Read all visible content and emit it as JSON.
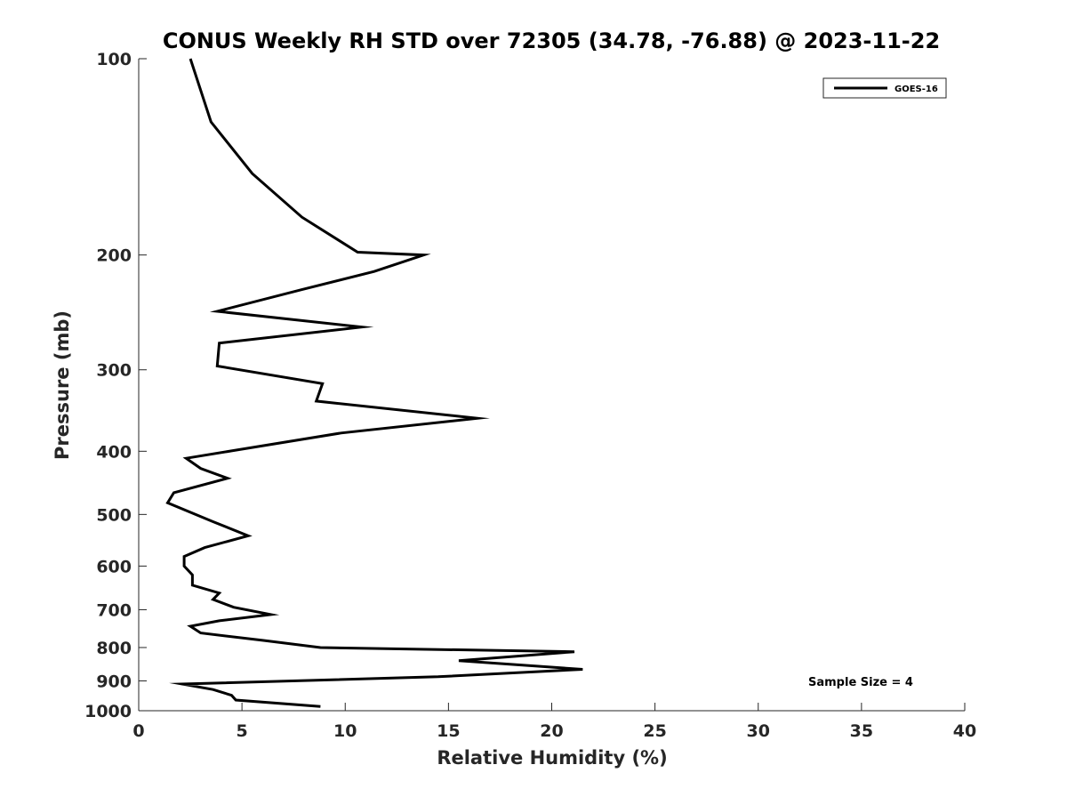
{
  "chart_data": {
    "type": "line",
    "title": "CONUS Weekly RH STD over 72305 (34.78, -76.88) @ 2023-11-22",
    "xlabel": "Relative Humidity (%)",
    "ylabel": "Pressure (mb)",
    "xlim": [
      0,
      40
    ],
    "ylim": [
      100,
      1000
    ],
    "y_scale": "log",
    "y_reversed": true,
    "x_ticks": [
      "0",
      "5",
      "10",
      "15",
      "20",
      "25",
      "30",
      "35",
      "40"
    ],
    "y_ticks": [
      "100",
      "200",
      "300",
      "400",
      "500",
      "600",
      "700",
      "800",
      "900",
      "1000"
    ],
    "grid": false,
    "legend_position": "top-right",
    "annotation": "Sample Size = 4",
    "series": [
      {
        "name": "GOES-16",
        "color": "#000000",
        "points": [
          [
            2.5,
            100
          ],
          [
            3.5,
            125
          ],
          [
            5.5,
            150
          ],
          [
            7.9,
            175
          ],
          [
            10.6,
            198
          ],
          [
            13.8,
            200
          ],
          [
            11.4,
            212
          ],
          [
            7.9,
            226
          ],
          [
            3.8,
            244
          ],
          [
            10.8,
            258
          ],
          [
            3.9,
            273
          ],
          [
            3.8,
            296
          ],
          [
            8.9,
            315
          ],
          [
            8.6,
            335
          ],
          [
            16.4,
            356
          ],
          [
            9.8,
            375
          ],
          [
            2.3,
            410
          ],
          [
            3.0,
            425
          ],
          [
            4.3,
            440
          ],
          [
            1.7,
            463
          ],
          [
            1.4,
            480
          ],
          [
            3.6,
            513
          ],
          [
            5.3,
            539
          ],
          [
            3.2,
            562
          ],
          [
            2.2,
            580
          ],
          [
            2.2,
            600
          ],
          [
            2.6,
            619
          ],
          [
            2.6,
            642
          ],
          [
            3.9,
            660
          ],
          [
            3.6,
            675
          ],
          [
            4.6,
            694
          ],
          [
            6.4,
            712
          ],
          [
            3.9,
            728
          ],
          [
            2.5,
            742
          ],
          [
            3.0,
            760
          ],
          [
            6.0,
            780
          ],
          [
            8.8,
            800
          ],
          [
            21.1,
            812
          ],
          [
            15.5,
            838
          ],
          [
            21.5,
            864
          ],
          [
            14.5,
            887
          ],
          [
            2.1,
            910
          ],
          [
            3.6,
            928
          ],
          [
            4.5,
            947
          ],
          [
            4.7,
            963
          ],
          [
            8.8,
            985
          ]
        ]
      }
    ]
  }
}
